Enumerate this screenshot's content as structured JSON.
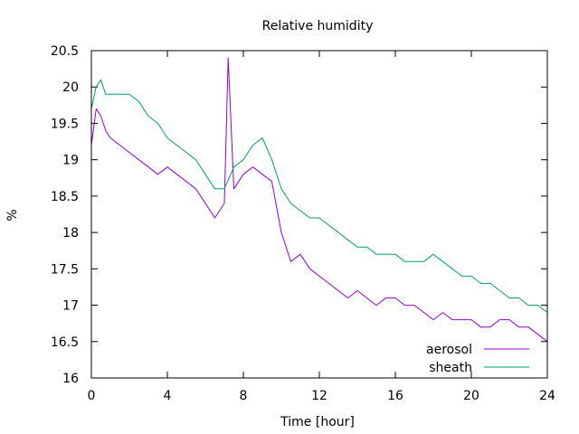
{
  "chart_data": {
    "type": "line",
    "title": "Relative humidity",
    "xlabel": "Time [hour]",
    "ylabel": "%",
    "xlim": [
      0,
      24
    ],
    "ylim": [
      16,
      20.5
    ],
    "x_ticks": [
      "0",
      "4",
      "8",
      "12",
      "16",
      "20",
      "24"
    ],
    "y_ticks": [
      "16",
      "16.5",
      "17",
      "17.5",
      "18",
      "18.5",
      "19",
      "19.5",
      "20",
      "20.5"
    ],
    "grid": false,
    "legend_position": "bottom-right",
    "series": [
      {
        "name": "aerosol",
        "color": "#9400d3",
        "x": [
          0,
          0.25,
          0.5,
          0.75,
          1,
          1.5,
          2,
          2.5,
          3,
          3.5,
          4,
          4.5,
          5,
          5.5,
          6,
          6.5,
          7,
          7.2,
          7.5,
          8,
          8.5,
          9,
          9.5,
          10,
          10.5,
          11,
          11.5,
          12,
          12.5,
          13,
          13.5,
          14,
          14.5,
          15,
          15.5,
          16,
          16.5,
          17,
          17.5,
          18,
          18.5,
          19,
          19.5,
          20,
          20.5,
          21,
          21.5,
          22,
          22.5,
          23,
          23.5,
          24
        ],
        "y": [
          19.2,
          19.7,
          19.6,
          19.4,
          19.3,
          19.2,
          19.1,
          19.0,
          18.9,
          18.8,
          18.9,
          18.8,
          18.7,
          18.6,
          18.4,
          18.2,
          18.4,
          20.4,
          18.6,
          18.8,
          18.9,
          18.8,
          18.7,
          18.0,
          17.6,
          17.7,
          17.5,
          17.4,
          17.3,
          17.2,
          17.1,
          17.2,
          17.1,
          17.0,
          17.1,
          17.1,
          17.0,
          17.0,
          16.9,
          16.8,
          16.9,
          16.8,
          16.8,
          16.8,
          16.7,
          16.7,
          16.8,
          16.8,
          16.7,
          16.7,
          16.6,
          16.5
        ]
      },
      {
        "name": "sheath",
        "color": "#009e73",
        "x": [
          0,
          0.25,
          0.5,
          0.75,
          1,
          1.5,
          2,
          2.5,
          3,
          3.5,
          4,
          4.5,
          5,
          5.5,
          6,
          6.5,
          7,
          7.5,
          8,
          8.5,
          9,
          9.5,
          10,
          10.5,
          11,
          11.5,
          12,
          12.5,
          13,
          13.5,
          14,
          14.5,
          15,
          15.5,
          16,
          16.5,
          17,
          17.5,
          18,
          18.5,
          19,
          19.5,
          20,
          20.5,
          21,
          21.5,
          22,
          22.5,
          23,
          23.5,
          24
        ],
        "y": [
          19.7,
          20.0,
          20.1,
          19.9,
          19.9,
          19.9,
          19.9,
          19.8,
          19.6,
          19.5,
          19.3,
          19.2,
          19.1,
          19.0,
          18.8,
          18.6,
          18.6,
          18.9,
          19.0,
          19.2,
          19.3,
          19.0,
          18.6,
          18.4,
          18.3,
          18.2,
          18.2,
          18.1,
          18.0,
          17.9,
          17.8,
          17.8,
          17.7,
          17.7,
          17.7,
          17.6,
          17.6,
          17.6,
          17.7,
          17.6,
          17.5,
          17.4,
          17.4,
          17.3,
          17.3,
          17.2,
          17.1,
          17.1,
          17.0,
          17.0,
          16.9
        ]
      }
    ]
  }
}
